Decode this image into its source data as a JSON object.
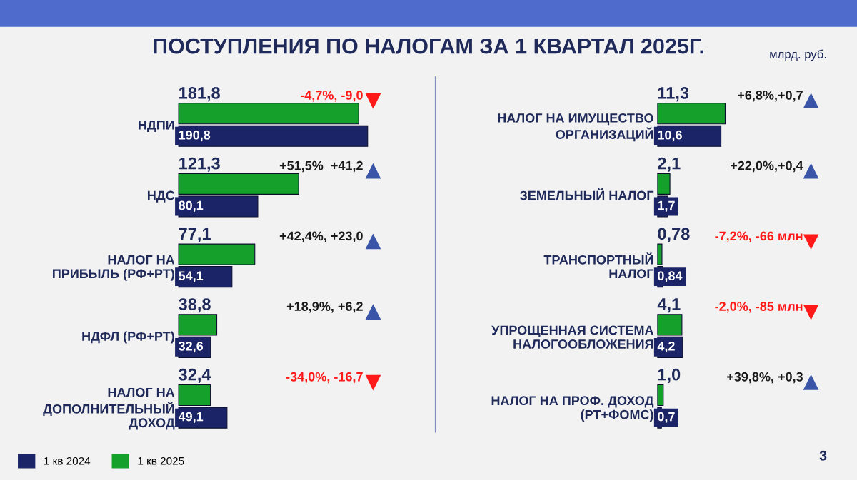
{
  "chart_data": [
    {
      "type": "bar",
      "orientation": "horizontal",
      "title": "ПОСТУПЛЕНИЯ ПО НАЛОГАМ ЗА 1 КВАРТАЛ 2025Г.",
      "categories": [
        "НДПИ",
        "НДС",
        "НАЛОГ НА\nПРИБЫЛЬ (РФ+РТ)",
        "НДФЛ (РФ+РТ)",
        "НАЛОГ НА\nДОПОЛНИТЕЛЬНЫЙ\nДОХОД"
      ],
      "series": [
        {
          "name": "1 кв 2024",
          "color": "#1a2466",
          "values": [
            190.8,
            80.1,
            54.1,
            32.6,
            49.1
          ],
          "value_labels": [
            "190,8",
            "80,1",
            "54,1",
            "32,6",
            "49,1"
          ]
        },
        {
          "name": "1 кв 2025",
          "color": "#14a02a",
          "values": [
            181.8,
            121.3,
            77.1,
            38.8,
            32.4
          ],
          "value_labels": [
            "181,8",
            "121,3",
            "77,1",
            "38,8",
            "32,4"
          ]
        }
      ],
      "legend": "bottom left",
      "annotations": [
        "-4,7%, -9,0",
        "+51,5%  +41,2",
        "+42,4%, +23,0",
        "+18,9%, +6,2",
        "-34,0%, -16,7"
      ]
    },
    {
      "type": "bar",
      "orientation": "horizontal",
      "categories": [
        "НАЛОГ НА ИМУЩЕСТВО\nОРГАНИЗАЦИЙ",
        "ЗЕМЕЛЬНЫЙ НАЛОГ",
        "ТРАНСПОРТНЫЙ\nНАЛОГ",
        "УПРОЩЕННАЯ СИСТЕМА\nНАЛОГООБЛОЖЕНИЯ",
        "НАЛОГ НА ПРОФ. ДОХОД\n(РТ+ФОМС)"
      ],
      "series": [
        {
          "color": "#1a2466",
          "values": [
            10.6,
            1.7,
            0.84,
            4.2,
            0.7
          ],
          "value_labels": [
            "10,6",
            "1,7",
            "0,84",
            "4,2",
            "0,7"
          ]
        },
        {
          "color": "#14a02a",
          "values": [
            11.3,
            2.1,
            0.78,
            4.1,
            1.0
          ],
          "value_labels": [
            "11,3",
            "2,1",
            "0,78",
            "4,1",
            "1,0"
          ]
        }
      ],
      "annotations": [
        "+6,8%,+0,7",
        "+22,0%,+0,4",
        "-7,2%, -66 млн",
        "-2,0%, -85 млн",
        "+39,8%, +0,3",
        "млрд. руб.",
        "3"
      ]
    }
  ]
}
